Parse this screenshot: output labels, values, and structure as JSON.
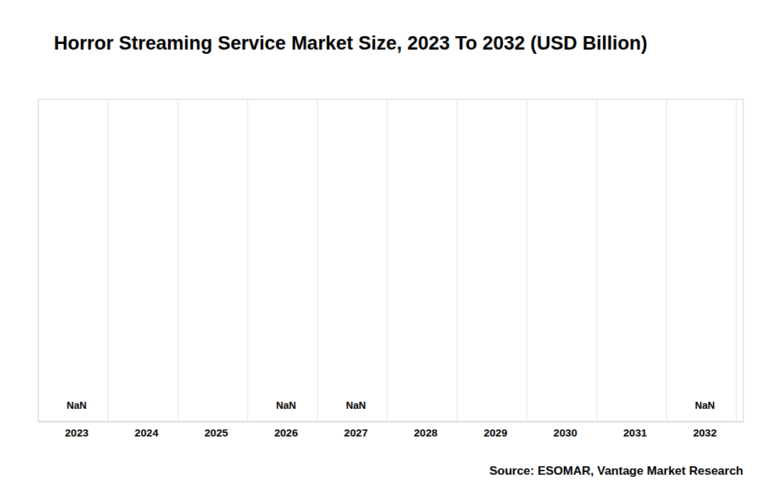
{
  "chart_data": {
    "type": "bar",
    "title": "Horror Streaming Service Market Size, 2023 To 2032 (USD Billion)",
    "categories": [
      "2023",
      "2024",
      "2025",
      "2026",
      "2027",
      "2028",
      "2029",
      "2030",
      "2031",
      "2032"
    ],
    "values": [
      null,
      null,
      null,
      null,
      null,
      null,
      null,
      null,
      null,
      null
    ],
    "value_labels": [
      "NaN",
      null,
      null,
      "NaN",
      "NaN",
      null,
      null,
      null,
      null,
      "NaN"
    ],
    "data_labels": true,
    "tick_labels": "x",
    "grid": true,
    "annotations": [
      "Source: ESOMAR, Vantage Market Research"
    ]
  }
}
